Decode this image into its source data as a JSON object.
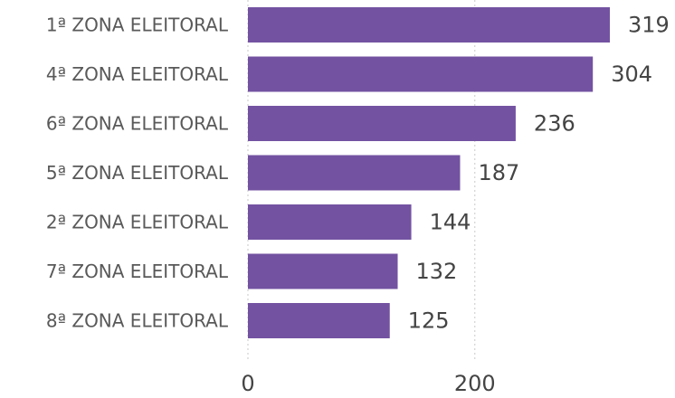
{
  "chart_data": {
    "type": "bar",
    "orientation": "horizontal",
    "categories": [
      "1ª ZONA ELEITORAL",
      "4ª ZONA ELEITORAL",
      "6ª ZONA ELEITORAL",
      "5ª ZONA ELEITORAL",
      "2ª ZONA ELEITORAL",
      "7ª ZONA ELEITORAL",
      "8ª ZONA ELEITORAL"
    ],
    "values": [
      319,
      304,
      236,
      187,
      144,
      132,
      125
    ],
    "xticks": [
      0,
      200
    ],
    "xlim": [
      0,
      319
    ],
    "grid": true,
    "data_labels": true,
    "bar_color": "#7352a1"
  }
}
